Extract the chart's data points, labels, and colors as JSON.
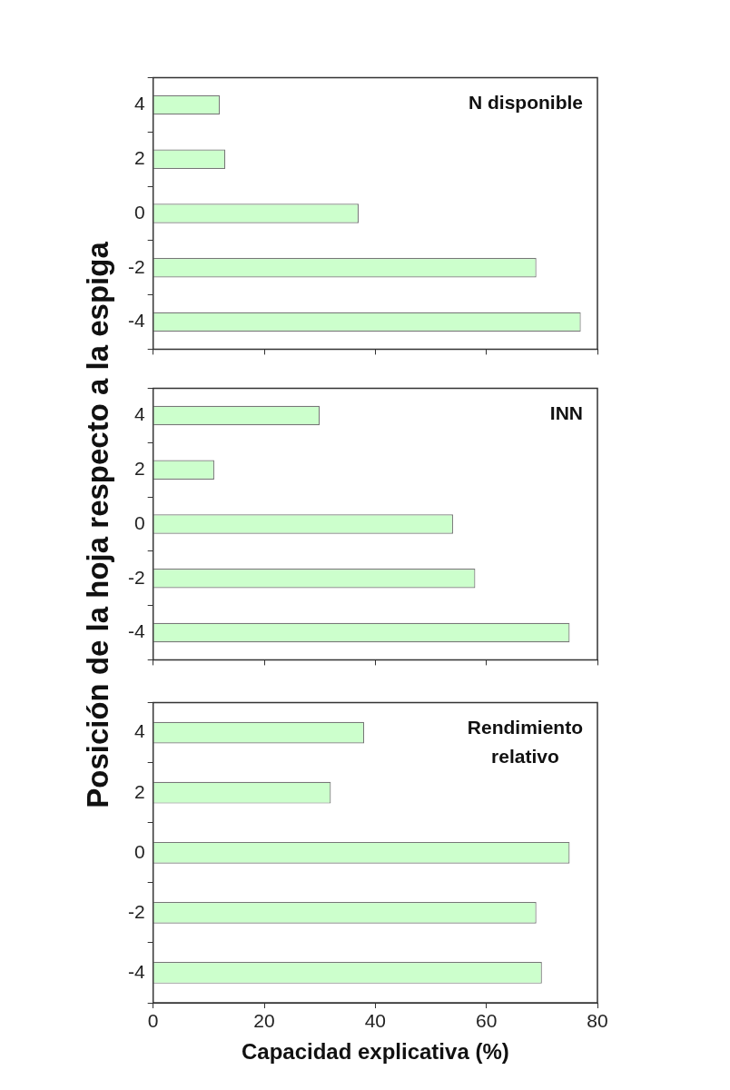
{
  "chart_data": [
    {
      "type": "bar",
      "orientation": "horizontal",
      "title": "N disponible",
      "ylabel": "Posición de la hoja respecto a la espiga",
      "categories": [
        "4",
        "2",
        "0",
        "-2",
        "-4"
      ],
      "values": [
        12,
        13,
        37,
        69,
        77
      ],
      "color": "#ccffcc",
      "xlim": [
        0,
        80
      ],
      "xticks": [
        0,
        20,
        40,
        60,
        80
      ],
      "tick_labels": "y"
    },
    {
      "type": "bar",
      "orientation": "horizontal",
      "title": "INN",
      "categories": [
        "4",
        "2",
        "0",
        "-2",
        "-4"
      ],
      "values": [
        30,
        11,
        54,
        58,
        75
      ],
      "color": "#ccffcc",
      "xlim": [
        0,
        80
      ],
      "xticks": [
        0,
        20,
        40,
        60,
        80
      ],
      "tick_labels": "y"
    },
    {
      "type": "bar",
      "orientation": "horizontal",
      "title": "Rendimiento relativo",
      "xlabel": "Capacidad explicativa (%)",
      "categories": [
        "4",
        "2",
        "0",
        "-2",
        "-4"
      ],
      "values": [
        38,
        32,
        75,
        69,
        70
      ],
      "color": "#ccffcc",
      "xlim": [
        0,
        80
      ],
      "xticks": [
        0,
        20,
        40,
        60,
        80
      ]
    }
  ]
}
